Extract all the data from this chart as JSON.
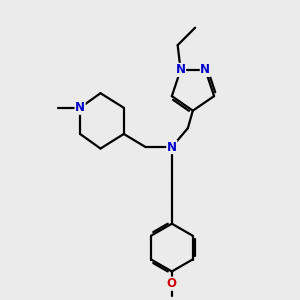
{
  "background_color": "#ebebeb",
  "bond_color": "#000000",
  "N_color": "#0000cc",
  "O_color": "#cc0000",
  "font_size": 8.5,
  "line_width": 1.6,
  "xlim": [
    1.0,
    9.5
  ],
  "ylim": [
    0.2,
    10.5
  ]
}
